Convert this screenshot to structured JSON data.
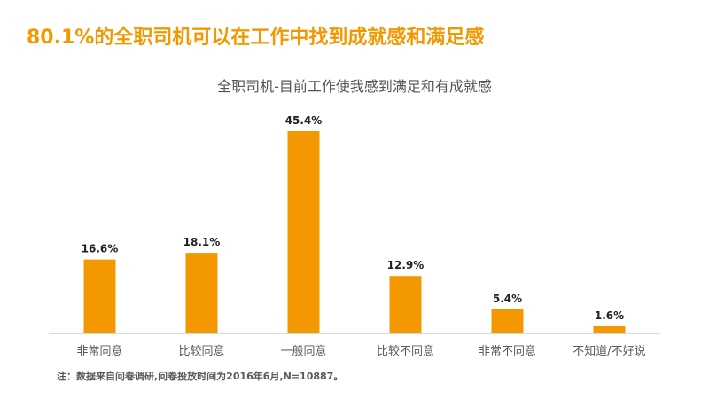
{
  "headline": "80.1%的全职司机可以在工作中找到成就感和满足感",
  "footnote": "注：数据来自问卷调研,问卷投放时间为2016年6月,N=10887。",
  "colors": {
    "bar": "#f39800",
    "headline": "#f39800",
    "axis": "#d9d9d9"
  },
  "chart_data": {
    "type": "bar",
    "title": "全职司机-目前工作使我感到满足和有成就感",
    "categories": [
      "非常同意",
      "比较同意",
      "一般同意",
      "比较不同意",
      "非常不同意",
      "不知道/不好说"
    ],
    "values": [
      16.6,
      18.1,
      45.4,
      12.9,
      5.4,
      1.6
    ],
    "value_labels": [
      "16.6%",
      "18.1%",
      "45.4%",
      "12.9%",
      "5.4%",
      "1.6%"
    ],
    "unit": "%",
    "ylim": [
      0,
      50
    ],
    "grid": false,
    "legend": "none"
  }
}
